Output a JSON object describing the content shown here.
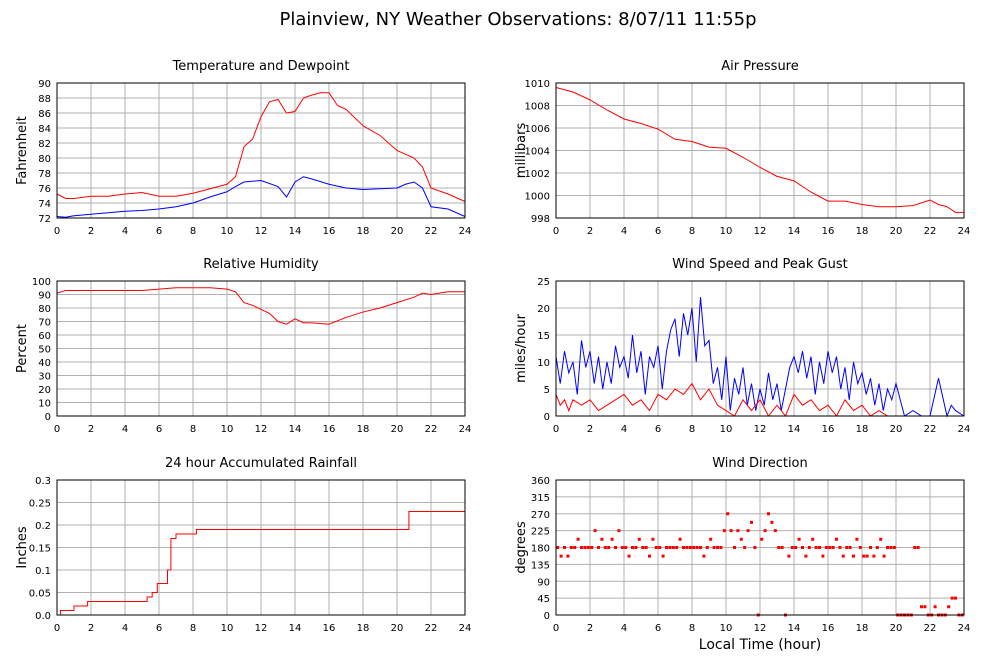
{
  "page": {
    "title": "Plainview, NY Weather Observations: 8/07/11 11:55p",
    "xlabel": "Local Time (hour)"
  },
  "colors": {
    "red": "#ff0000",
    "blue": "#0000ff",
    "grid": "#b0b0b0",
    "frame": "#000000"
  },
  "chart_data": [
    {
      "id": "temp",
      "type": "line",
      "title": "Temperature and Dewpoint",
      "ylabel": "Fahrenheit",
      "xlim": [
        0,
        24
      ],
      "ylim": [
        72,
        90
      ],
      "xticks": [
        0,
        2,
        4,
        6,
        8,
        10,
        12,
        14,
        16,
        18,
        20,
        22,
        24
      ],
      "yticks": [
        72,
        74,
        76,
        78,
        80,
        82,
        84,
        86,
        88,
        90
      ],
      "grid": true,
      "series": [
        {
          "color": "#ff0000",
          "style": "line",
          "x": [
            0,
            0.5,
            1,
            2,
            3,
            4,
            5,
            6,
            7,
            8,
            9,
            10,
            10.5,
            11,
            11.5,
            12,
            12.5,
            13,
            13.5,
            14,
            14.5,
            15,
            15.5,
            16,
            16.5,
            17,
            18,
            19,
            20,
            21,
            21.5,
            22,
            23,
            24
          ],
          "y": [
            75.2,
            74.6,
            74.6,
            74.9,
            74.9,
            75.2,
            75.4,
            74.9,
            74.9,
            75.3,
            75.9,
            76.5,
            77.5,
            81.5,
            82.5,
            85.5,
            87.5,
            87.8,
            86.0,
            86.2,
            88.0,
            88.4,
            88.7,
            88.7,
            87.0,
            86.5,
            84.3,
            83.0,
            81.0,
            80.0,
            78.8,
            76.0,
            75.2,
            74.2
          ]
        },
        {
          "color": "#0000ff",
          "style": "line",
          "x": [
            0,
            0.5,
            1,
            2,
            3,
            4,
            5,
            6,
            7,
            8,
            9,
            10,
            10.5,
            11,
            12,
            13,
            13.5,
            14,
            14.5,
            15,
            16,
            17,
            18,
            19,
            20,
            20.5,
            21,
            21.5,
            22,
            23,
            24
          ],
          "y": [
            72.2,
            72.1,
            72.3,
            72.5,
            72.7,
            72.9,
            73.0,
            73.2,
            73.5,
            74.0,
            74.8,
            75.5,
            76.2,
            76.8,
            77.0,
            76.2,
            74.8,
            76.8,
            77.5,
            77.2,
            76.5,
            76.0,
            75.8,
            75.9,
            76.0,
            76.5,
            76.8,
            76.0,
            73.5,
            73.2,
            72.2
          ]
        }
      ]
    },
    {
      "id": "pressure",
      "type": "line",
      "title": "Air Pressure",
      "ylabel": "millibars",
      "xlim": [
        0,
        24
      ],
      "ylim": [
        998,
        1010
      ],
      "xticks": [
        0,
        2,
        4,
        6,
        8,
        10,
        12,
        14,
        16,
        18,
        20,
        22,
        24
      ],
      "yticks": [
        998,
        1000,
        1002,
        1004,
        1006,
        1008,
        1010
      ],
      "grid": true,
      "series": [
        {
          "color": "#ff0000",
          "style": "line",
          "x": [
            0,
            1,
            2,
            3,
            4,
            5,
            6,
            7,
            8,
            9,
            10,
            11,
            12,
            13,
            14,
            15,
            16,
            17,
            18,
            19,
            20,
            21,
            22,
            22.5,
            23,
            23.5,
            24
          ],
          "y": [
            1009.6,
            1009.2,
            1008.5,
            1007.6,
            1006.8,
            1006.4,
            1005.9,
            1005.0,
            1004.8,
            1004.3,
            1004.2,
            1003.4,
            1002.5,
            1001.7,
            1001.3,
            1000.3,
            999.5,
            999.5,
            999.2,
            999.0,
            999.0,
            999.1,
            999.6,
            999.2,
            999.0,
            998.5,
            998.5
          ]
        }
      ]
    },
    {
      "id": "humidity",
      "type": "line",
      "title": "Relative Humidity",
      "ylabel": "Percent",
      "xlim": [
        0,
        24
      ],
      "ylim": [
        0,
        100
      ],
      "xticks": [
        0,
        2,
        4,
        6,
        8,
        10,
        12,
        14,
        16,
        18,
        20,
        22,
        24
      ],
      "yticks": [
        0,
        10,
        20,
        30,
        40,
        50,
        60,
        70,
        80,
        90,
        100
      ],
      "grid": true,
      "series": [
        {
          "color": "#ff0000",
          "style": "line",
          "x": [
            0,
            0.5,
            1,
            2,
            3,
            4,
            5,
            6,
            7,
            8,
            9,
            10,
            10.5,
            11,
            11.5,
            12,
            12.5,
            13,
            13.5,
            14,
            14.5,
            15,
            16,
            17,
            18,
            19,
            20,
            21,
            21.5,
            22,
            23,
            24
          ],
          "y": [
            91,
            93,
            93,
            93,
            93,
            93,
            93,
            94,
            95,
            95,
            95,
            94,
            92,
            84,
            82,
            79,
            76,
            70,
            68,
            72,
            69,
            69,
            68,
            73,
            77,
            80,
            84,
            88,
            91,
            90,
            92,
            92
          ]
        }
      ]
    },
    {
      "id": "wind",
      "type": "line",
      "title": "Wind Speed and Peak Gust",
      "ylabel": "miles/hour",
      "xlim": [
        0,
        24
      ],
      "ylim": [
        0,
        25
      ],
      "xticks": [
        0,
        2,
        4,
        6,
        8,
        10,
        12,
        14,
        16,
        18,
        20,
        22,
        24
      ],
      "yticks": [
        0,
        5,
        10,
        15,
        20,
        25
      ],
      "grid": true,
      "series": [
        {
          "color": "#0000ff",
          "style": "line",
          "x": [
            0,
            0.25,
            0.5,
            0.75,
            1,
            1.25,
            1.5,
            1.75,
            2,
            2.25,
            2.5,
            2.75,
            3,
            3.25,
            3.5,
            3.75,
            4,
            4.25,
            4.5,
            4.75,
            5,
            5.25,
            5.5,
            5.75,
            6,
            6.25,
            6.5,
            6.75,
            7,
            7.25,
            7.5,
            7.75,
            8,
            8.25,
            8.5,
            8.75,
            9,
            9.25,
            9.5,
            9.75,
            10,
            10.25,
            10.5,
            10.75,
            11,
            11.25,
            11.5,
            11.75,
            12,
            12.25,
            12.5,
            12.75,
            13,
            13.25,
            13.5,
            13.75,
            14,
            14.25,
            14.5,
            14.75,
            15,
            15.25,
            15.5,
            15.75,
            16,
            16.25,
            16.5,
            16.75,
            17,
            17.25,
            17.5,
            17.75,
            18,
            18.25,
            18.5,
            18.75,
            19,
            19.25,
            19.5,
            19.75,
            20,
            20.5,
            21,
            21.5,
            21.75,
            22,
            22.5,
            23,
            23.25,
            23.5,
            24
          ],
          "y": [
            11,
            6,
            12,
            8,
            10,
            4,
            14,
            9,
            12,
            6,
            11,
            5,
            10,
            6,
            13,
            9,
            11,
            7,
            15,
            8,
            12,
            4,
            11,
            9,
            13,
            5,
            12,
            16,
            18,
            11,
            19,
            15,
            20,
            10,
            22,
            13,
            14,
            6,
            9,
            3,
            11,
            1,
            7,
            4,
            9,
            2,
            6,
            1,
            5,
            2,
            8,
            3,
            6,
            1,
            5,
            9,
            11,
            8,
            12,
            7,
            11,
            4,
            10,
            6,
            12,
            8,
            11,
            5,
            9,
            3,
            10,
            6,
            8,
            4,
            7,
            2,
            6,
            1,
            5,
            3,
            6,
            0,
            1,
            0,
            0,
            0,
            7,
            0,
            2,
            1,
            0
          ]
        },
        {
          "color": "#ff0000",
          "style": "line",
          "x": [
            0,
            0.25,
            0.5,
            0.75,
            1,
            1.5,
            2,
            2.5,
            3,
            3.5,
            4,
            4.5,
            5,
            5.5,
            6,
            6.5,
            7,
            7.5,
            8,
            8.5,
            9,
            9.5,
            10,
            10.5,
            11,
            11.5,
            12,
            12.5,
            13,
            13.5,
            14,
            14.5,
            15,
            15.5,
            16,
            16.5,
            17,
            17.5,
            18,
            18.5,
            19,
            19.5,
            20,
            21,
            22,
            23,
            24
          ],
          "y": [
            4,
            2,
            3,
            1,
            3,
            2,
            3,
            1,
            2,
            3,
            4,
            2,
            3,
            1,
            4,
            3,
            5,
            4,
            6,
            3,
            5,
            2,
            1,
            0,
            3,
            1,
            3,
            0,
            2,
            0,
            4,
            2,
            3,
            1,
            2,
            0,
            3,
            1,
            2,
            0,
            1,
            0,
            0,
            0,
            0,
            0,
            0
          ]
        }
      ]
    },
    {
      "id": "rain",
      "type": "line",
      "title": "24 hour Accumulated Rainfall",
      "ylabel": "Inches",
      "xlim": [
        0,
        24
      ],
      "ylim": [
        0,
        0.3
      ],
      "xticks": [
        0,
        2,
        4,
        6,
        8,
        10,
        12,
        14,
        16,
        18,
        20,
        22,
        24
      ],
      "yticks": [
        0,
        0.05,
        0.1,
        0.15,
        0.2,
        0.25,
        0.3
      ],
      "yticklabels": [
        "0.0",
        "0.05",
        "0.1",
        "0.15",
        "0.2",
        "0.25",
        "0.3"
      ],
      "grid": true,
      "series": [
        {
          "color": "#ff0000",
          "style": "step",
          "x": [
            0,
            0.1,
            0.2,
            1.0,
            1.8,
            5.3,
            5.6,
            5.9,
            6.5,
            6.7,
            7.0,
            8.2,
            20.7,
            24
          ],
          "y": [
            0,
            0.0,
            0.01,
            0.02,
            0.03,
            0.04,
            0.05,
            0.07,
            0.1,
            0.17,
            0.18,
            0.19,
            0.23,
            0.23
          ]
        }
      ]
    },
    {
      "id": "direction",
      "type": "scatter",
      "title": "Wind Direction",
      "ylabel": "degrees",
      "xlim": [
        0,
        24
      ],
      "ylim": [
        0,
        360
      ],
      "xticks": [
        0,
        2,
        4,
        6,
        8,
        10,
        12,
        14,
        16,
        18,
        20,
        22,
        24
      ],
      "yticks": [
        0,
        45,
        90,
        135,
        180,
        225,
        270,
        315,
        360
      ],
      "grid": true,
      "series": [
        {
          "color": "#ff0000",
          "style": "dots",
          "x": [
            0.1,
            0.3,
            0.5,
            0.7,
            0.9,
            1.1,
            1.3,
            1.5,
            1.7,
            1.9,
            2.1,
            2.3,
            2.5,
            2.7,
            2.9,
            3.1,
            3.3,
            3.5,
            3.7,
            3.9,
            4.1,
            4.3,
            4.5,
            4.7,
            4.9,
            5.1,
            5.3,
            5.5,
            5.7,
            5.9,
            6.1,
            6.3,
            6.5,
            6.7,
            6.9,
            7.1,
            7.3,
            7.5,
            7.7,
            7.9,
            8.1,
            8.3,
            8.5,
            8.7,
            8.9,
            9.1,
            9.3,
            9.5,
            9.7,
            9.9,
            10.1,
            10.3,
            10.5,
            10.7,
            10.9,
            11.1,
            11.3,
            11.5,
            11.7,
            11.9,
            12.1,
            12.3,
            12.5,
            12.7,
            12.9,
            13.1,
            13.3,
            13.5,
            13.7,
            13.9,
            14.1,
            14.3,
            14.5,
            14.7,
            14.9,
            15.1,
            15.3,
            15.5,
            15.7,
            15.9,
            16.1,
            16.3,
            16.5,
            16.7,
            16.9,
            17.1,
            17.3,
            17.5,
            17.7,
            17.9,
            18.1,
            18.3,
            18.5,
            18.7,
            18.9,
            19.1,
            19.3,
            19.5,
            19.7,
            19.9,
            20.1,
            20.3,
            20.5,
            20.7,
            20.9,
            21.1,
            21.3,
            21.5,
            21.7,
            21.9,
            22.1,
            22.3,
            22.5,
            22.7,
            22.9,
            23.1,
            23.3,
            23.5,
            23.7,
            23.9
          ],
          "y": [
            180,
            157,
            180,
            157,
            180,
            180,
            202,
            180,
            180,
            180,
            180,
            225,
            180,
            202,
            180,
            180,
            202,
            180,
            225,
            180,
            180,
            157,
            180,
            180,
            202,
            180,
            180,
            157,
            202,
            180,
            180,
            157,
            180,
            180,
            180,
            180,
            202,
            180,
            180,
            180,
            180,
            180,
            180,
            157,
            180,
            202,
            180,
            180,
            180,
            225,
            270,
            225,
            180,
            225,
            202,
            180,
            225,
            247,
            180,
            0,
            202,
            225,
            270,
            247,
            225,
            180,
            180,
            0,
            157,
            180,
            180,
            202,
            180,
            157,
            180,
            202,
            180,
            180,
            157,
            180,
            180,
            180,
            202,
            180,
            157,
            180,
            180,
            157,
            202,
            180,
            157,
            157,
            180,
            157,
            180,
            202,
            157,
            180,
            180,
            180,
            0,
            0,
            0,
            0,
            0,
            180,
            180,
            22,
            22,
            0,
            0,
            22,
            0,
            0,
            0,
            22,
            45,
            45,
            0,
            0
          ]
        }
      ]
    }
  ]
}
